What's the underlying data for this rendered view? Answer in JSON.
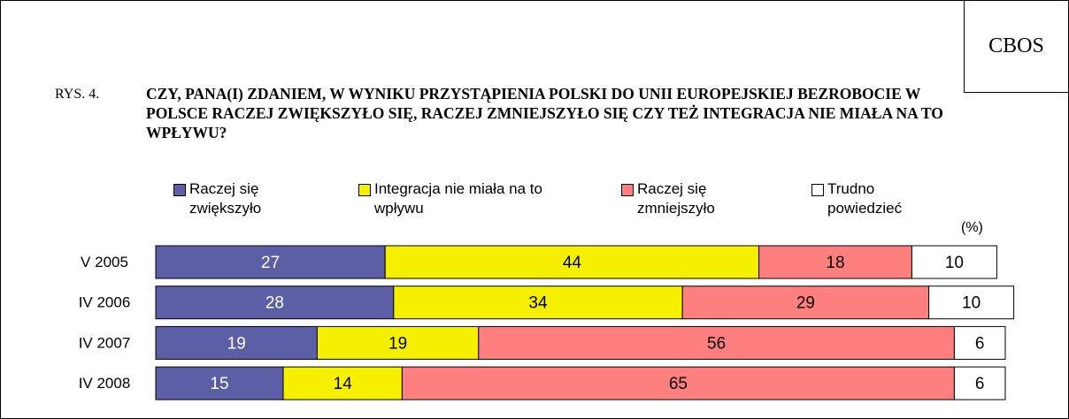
{
  "source": "CBOS",
  "figure_label": "RYS. 4.",
  "chart_data": {
    "type": "stacked-bar",
    "title": "CZY, PANA(I) ZDANIEM, W WYNIKU PRZYSTĄPIENIA POLSKI DO UNII EUROPEJSKIEJ BEZROBOCIE W POLSCE RACZEJ ZWIĘKSZYŁO SIĘ, RACZEJ ZMNIEJSZYŁO SIĘ CZY TEŻ INTEGRACJA NIE MIAŁA NA TO WPŁYWU?",
    "unit_label": "(%)",
    "orientation": "horizontal",
    "categories": [
      "V 2005",
      "IV 2006",
      "IV 2007",
      "IV 2008"
    ],
    "xlim": [
      0,
      100
    ],
    "series": [
      {
        "name": "Raczej się zwiększyło",
        "color": "#5c5ea6",
        "label_color": "#ffffff",
        "values": [
          27,
          28,
          19,
          15
        ]
      },
      {
        "name": "Integracja nie miała na to wpływu",
        "color": "#f5ef00",
        "label_color": "#000000",
        "values": [
          44,
          34,
          19,
          14
        ]
      },
      {
        "name": "Raczej się zmniejszyło",
        "color": "#ff7f7f",
        "label_color": "#000000",
        "values": [
          18,
          29,
          56,
          65
        ]
      },
      {
        "name": "Trudno powiedzieć",
        "color": "#ffffff",
        "label_color": "#000000",
        "values": [
          10,
          10,
          6,
          6
        ]
      }
    ]
  }
}
